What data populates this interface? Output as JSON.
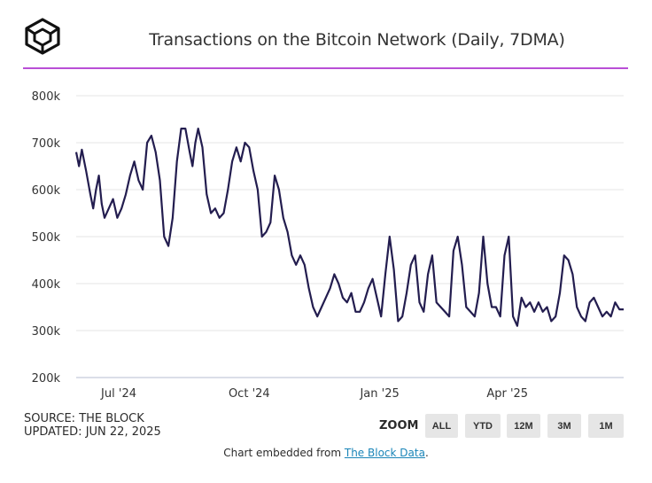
{
  "title": "Transactions on the Bitcoin Network (Daily, 7DMA)",
  "source": {
    "line1": "SOURCE: THE BLOCK",
    "line2": "UPDATED: JUN 22, 2025"
  },
  "zoom": {
    "label": "ZOOM",
    "buttons": [
      "ALL",
      "YTD",
      "12M",
      "3M",
      "1M"
    ]
  },
  "embed": {
    "prefix": "Chart embedded from ",
    "link_text": "The Block Data",
    "suffix": "."
  },
  "colors": {
    "accent": "#b94fd6",
    "series": "#231d4f"
  },
  "chart_data": {
    "type": "line",
    "title": "Transactions on the Bitcoin Network (Daily, 7DMA)",
    "xlabel": "",
    "ylabel": "",
    "ylim": [
      200000,
      800000
    ],
    "yticks": [
      800000,
      700000,
      600000,
      500000,
      400000,
      300000,
      200000
    ],
    "ytick_labels": [
      "800k",
      "700k",
      "600k",
      "500k",
      "400k",
      "300k",
      "200k"
    ],
    "xlim": [
      "2024-06-01",
      "2025-06-22"
    ],
    "xtick_dates": [
      "2024-07-01",
      "2024-10-01",
      "2025-01-01",
      "2025-04-01"
    ],
    "xtick_labels": [
      "Jul '24",
      "Oct '24",
      "Jan '25",
      "Apr '25"
    ],
    "grid": true,
    "legend": "none",
    "series": [
      {
        "x": [
          "2024-06-01",
          "2024-06-03",
          "2024-06-05",
          "2024-06-08",
          "2024-06-11",
          "2024-06-13",
          "2024-06-15",
          "2024-06-17",
          "2024-06-19",
          "2024-06-21",
          "2024-06-24",
          "2024-06-27",
          "2024-06-30",
          "2024-07-03",
          "2024-07-06",
          "2024-07-09",
          "2024-07-12",
          "2024-07-15",
          "2024-07-18",
          "2024-07-21",
          "2024-07-24",
          "2024-07-27",
          "2024-07-30",
          "2024-08-02",
          "2024-08-05",
          "2024-08-08",
          "2024-08-11",
          "2024-08-14",
          "2024-08-17",
          "2024-08-20",
          "2024-08-22",
          "2024-08-24",
          "2024-08-26",
          "2024-08-29",
          "2024-09-01",
          "2024-09-04",
          "2024-09-07",
          "2024-09-10",
          "2024-09-13",
          "2024-09-16",
          "2024-09-19",
          "2024-09-22",
          "2024-09-25",
          "2024-09-28",
          "2024-10-01",
          "2024-10-04",
          "2024-10-07",
          "2024-10-10",
          "2024-10-13",
          "2024-10-16",
          "2024-10-19",
          "2024-10-22",
          "2024-10-25",
          "2024-10-28",
          "2024-10-31",
          "2024-11-03",
          "2024-11-06",
          "2024-11-09",
          "2024-11-12",
          "2024-11-15",
          "2024-11-18",
          "2024-11-21",
          "2024-11-24",
          "2024-11-27",
          "2024-11-30",
          "2024-12-03",
          "2024-12-06",
          "2024-12-09",
          "2024-12-12",
          "2024-12-15",
          "2024-12-18",
          "2024-12-21",
          "2024-12-24",
          "2024-12-27",
          "2024-12-30",
          "2025-01-02",
          "2025-01-05",
          "2025-01-08",
          "2025-01-11",
          "2025-01-14",
          "2025-01-17",
          "2025-01-20",
          "2025-01-23",
          "2025-01-26",
          "2025-01-29",
          "2025-02-01",
          "2025-02-04",
          "2025-02-07",
          "2025-02-10",
          "2025-02-13",
          "2025-02-16",
          "2025-02-19",
          "2025-02-22",
          "2025-02-25",
          "2025-02-28",
          "2025-03-03",
          "2025-03-06",
          "2025-03-09",
          "2025-03-12",
          "2025-03-15",
          "2025-03-18",
          "2025-03-21",
          "2025-03-24",
          "2025-03-27",
          "2025-03-30",
          "2025-04-02",
          "2025-04-05",
          "2025-04-08",
          "2025-04-11",
          "2025-04-14",
          "2025-04-17",
          "2025-04-20",
          "2025-04-23",
          "2025-04-26",
          "2025-04-29",
          "2025-05-02",
          "2025-05-05",
          "2025-05-08",
          "2025-05-11",
          "2025-05-14",
          "2025-05-17",
          "2025-05-20",
          "2025-05-23",
          "2025-05-26",
          "2025-05-29",
          "2025-06-01",
          "2025-06-04",
          "2025-06-07",
          "2025-06-10",
          "2025-06-13",
          "2025-06-16",
          "2025-06-19",
          "2025-06-22"
        ],
        "values": [
          680000,
          650000,
          685000,
          640000,
          590000,
          560000,
          600000,
          630000,
          570000,
          540000,
          560000,
          580000,
          540000,
          560000,
          590000,
          630000,
          660000,
          620000,
          600000,
          700000,
          715000,
          680000,
          620000,
          500000,
          480000,
          540000,
          660000,
          730000,
          730000,
          680000,
          650000,
          700000,
          730000,
          690000,
          590000,
          550000,
          560000,
          540000,
          550000,
          600000,
          660000,
          690000,
          660000,
          700000,
          690000,
          640000,
          600000,
          500000,
          510000,
          530000,
          630000,
          600000,
          540000,
          510000,
          460000,
          440000,
          460000,
          440000,
          390000,
          350000,
          330000,
          350000,
          370000,
          390000,
          420000,
          400000,
          370000,
          360000,
          380000,
          340000,
          340000,
          360000,
          390000,
          410000,
          370000,
          330000,
          420000,
          500000,
          430000,
          320000,
          330000,
          380000,
          440000,
          460000,
          360000,
          340000,
          420000,
          460000,
          360000,
          350000,
          340000,
          330000,
          470000,
          500000,
          440000,
          350000,
          340000,
          330000,
          380000,
          500000,
          400000,
          350000,
          350000,
          330000,
          460000,
          500000,
          330000,
          310000,
          370000,
          350000,
          360000,
          340000,
          360000,
          340000,
          350000,
          320000,
          330000,
          380000,
          460000,
          450000,
          420000,
          350000,
          330000,
          320000,
          360000,
          370000,
          350000,
          330000,
          340000,
          330000,
          360000,
          345000,
          345000
        ]
      }
    ]
  }
}
